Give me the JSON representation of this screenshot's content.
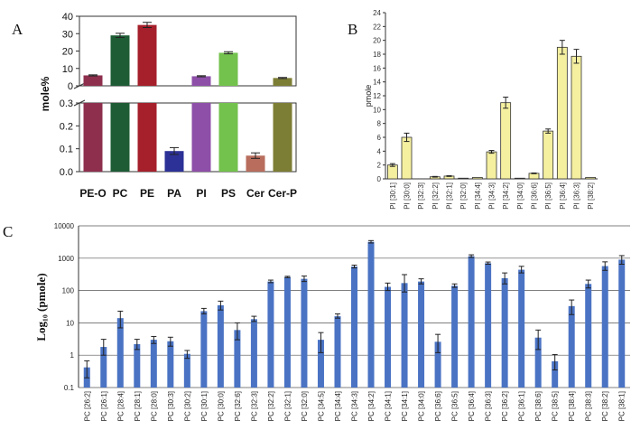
{
  "chart_data": [
    {
      "panel": "A",
      "type": "bar",
      "ylabel": "mole%",
      "broken_axis": true,
      "ylim_lower": [
        0,
        0.3
      ],
      "ylim_upper": [
        0,
        40
      ],
      "yticks_lower": [
        "0.0",
        "0.1",
        "0.2",
        "0.3"
      ],
      "yticks_upper": [
        "0",
        "10",
        "20",
        "30",
        "40"
      ],
      "categories": [
        "PE-O",
        "PC",
        "PE",
        "PA",
        "PI",
        "PS",
        "Cer",
        "Cer-P"
      ],
      "values": [
        6,
        29,
        35,
        0.09,
        5.5,
        19,
        0.07,
        4.5
      ],
      "errors": [
        0.3,
        1.2,
        1.5,
        0.015,
        0.3,
        0.6,
        0.012,
        0.3
      ],
      "colors": [
        "#8e2f4d",
        "#1e5c35",
        "#a5202b",
        "#2b3196",
        "#8d4fa8",
        "#73c24d",
        "#b86d5d",
        "#7d7e35"
      ]
    },
    {
      "panel": "B",
      "type": "bar",
      "ylabel": "pmole",
      "ylim": [
        0,
        24
      ],
      "yticks": [
        "0",
        "2",
        "4",
        "6",
        "8",
        "10",
        "12",
        "14",
        "16",
        "18",
        "20",
        "22",
        "24"
      ],
      "categories": [
        "PI [30:1]",
        "PI [30:0]",
        "PI [32:3]",
        "PI [32:2]",
        "PI [32:1]",
        "PI [32:0]",
        "PI [34:4]",
        "PI [34:3]",
        "PI [34:2]",
        "PI [34:0]",
        "PI [36:6]",
        "PI [36:5]",
        "PI [36:4]",
        "PI [36:3]",
        "PI [38:2]"
      ],
      "values": [
        2.0,
        6.0,
        0,
        0.3,
        0.4,
        0.1,
        0.2,
        3.9,
        11.0,
        0.1,
        0.8,
        6.9,
        19.0,
        17.7,
        0.2
      ],
      "errors": [
        0.2,
        0.6,
        0,
        0.05,
        0.05,
        0.02,
        0.03,
        0.2,
        0.8,
        0.02,
        0.05,
        0.3,
        1.0,
        1.0,
        0.03
      ],
      "color": "#f5f0a0"
    },
    {
      "panel": "C",
      "type": "bar",
      "ylabel": "Log₁₀ (pmole)",
      "log_scale": true,
      "ylim": [
        0.1,
        10000
      ],
      "yticks": [
        "0.1",
        "1",
        "10",
        "100",
        "1000",
        "10000"
      ],
      "categories": [
        "PC [26:2]",
        "PC [26:1]",
        "PC [28:4]",
        "PC [28:1]",
        "PC [28:0]",
        "PC [30:3]",
        "PC [30:2]",
        "PC [30:1]",
        "PC [30:0]",
        "PC [32:6]",
        "PC [32:3]",
        "PC [32:2]",
        "PC [32:1]",
        "PC [32:0]",
        "PC [34:5]",
        "PC [34:4]",
        "PC [34:3]",
        "PC [34:2]",
        "PC [34:1]",
        "PC [34:1]",
        "PC [34:0]",
        "PC [36:6]",
        "PC [36:5]",
        "PC [36:4]",
        "PC [36:3]",
        "PC [36:2]",
        "PC [36:1]",
        "PC [38:6]",
        "PC [38:5]",
        "PC [38:4]",
        "PC [38:3]",
        "PC [38:2]",
        "PC [38:1]"
      ],
      "values": [
        0.42,
        1.8,
        14,
        2.2,
        3.0,
        2.7,
        1.1,
        23,
        35,
        6,
        13,
        190,
        260,
        230,
        3,
        16,
        550,
        3200,
        130,
        170,
        190,
        2.6,
        140,
        1150,
        700,
        240,
        440,
        3.5,
        0.65,
        33,
        160,
        570,
        900
      ],
      "err_low": [
        0.22,
        0.8,
        7,
        0.7,
        0.7,
        0.8,
        0.3,
        4,
        10,
        3,
        2,
        15,
        10,
        40,
        1.8,
        2,
        50,
        250,
        30,
        80,
        30,
        1.4,
        15,
        100,
        50,
        80,
        90,
        2,
        0.3,
        15,
        40,
        150,
        250
      ],
      "err_high": [
        0.25,
        1.3,
        9,
        0.9,
        0.8,
        0.9,
        0.3,
        5,
        12,
        4,
        3,
        20,
        15,
        50,
        2,
        3,
        60,
        300,
        40,
        140,
        40,
        1.8,
        20,
        120,
        60,
        110,
        120,
        2.5,
        0.4,
        18,
        50,
        200,
        300
      ],
      "color": "#4a73c4"
    }
  ],
  "labels": {
    "panel_a": "A",
    "panel_b": "B",
    "panel_c": "C"
  }
}
